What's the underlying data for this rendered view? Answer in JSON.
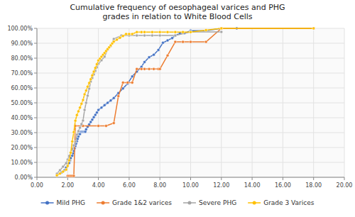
{
  "chart_data": {
    "type": "line",
    "title": "Cumulative frequency of oesophageal varices and PHG\ngrades in relation to White Blood Cells",
    "xlim": [
      0,
      20
    ],
    "ylim": [
      0,
      1.0
    ],
    "xticks": [
      {
        "value": 0,
        "label": "0.00"
      },
      {
        "value": 2,
        "label": "2.00"
      },
      {
        "value": 4,
        "label": "4.00"
      },
      {
        "value": 6,
        "label": "6.00"
      },
      {
        "value": 8,
        "label": "8.00"
      },
      {
        "value": 10,
        "label": "10.00"
      },
      {
        "value": 12,
        "label": "12.00"
      },
      {
        "value": 14,
        "label": "14.00"
      },
      {
        "value": 16,
        "label": "16.00"
      },
      {
        "value": 18,
        "label": "18.00"
      },
      {
        "value": 20,
        "label": "20.00"
      }
    ],
    "yticks": [
      {
        "value": 0,
        "label": "0.00%"
      },
      {
        "value": 0.1,
        "label": "10.00%"
      },
      {
        "value": 0.2,
        "label": "20.00%"
      },
      {
        "value": 0.3,
        "label": "30.00%"
      },
      {
        "value": 0.4,
        "label": "40.00%"
      },
      {
        "value": 0.5,
        "label": "50.00%"
      },
      {
        "value": 0.6,
        "label": "60.00%"
      },
      {
        "value": 0.7,
        "label": "70.00%"
      },
      {
        "value": 0.8,
        "label": "80.00%"
      },
      {
        "value": 0.9,
        "label": "90.00%"
      },
      {
        "value": 1.0,
        "label": "100.00%"
      }
    ],
    "grid": true,
    "legend": "bottom",
    "series": [
      {
        "name": "Mild PHG",
        "color": "#4472c4",
        "marker": "circle",
        "x": [
          1.3,
          1.6,
          1.8,
          1.9,
          2.0,
          2.1,
          2.15,
          2.2,
          2.3,
          2.35,
          2.4,
          2.45,
          2.5,
          2.55,
          2.6,
          2.65,
          2.7,
          2.75,
          2.8,
          2.85,
          2.9,
          2.95,
          3.0,
          3.05,
          3.1,
          3.15,
          3.2,
          3.3,
          3.4,
          3.5,
          3.6,
          3.7,
          3.8,
          3.9,
          4.0,
          4.2,
          4.4,
          4.6,
          4.8,
          5.0,
          5.3,
          5.6,
          5.9,
          6.2,
          6.5,
          6.8,
          7.0,
          7.3,
          7.6,
          7.9,
          8.2,
          8.5,
          8.8,
          9.0,
          9.3,
          9.6,
          10.0,
          11.0,
          12.0,
          13.0,
          18.0
        ],
        "values": [
          0.016,
          0.032,
          0.048,
          0.065,
          0.081,
          0.097,
          0.113,
          0.129,
          0.145,
          0.161,
          0.177,
          0.194,
          0.21,
          0.226,
          0.242,
          0.258,
          0.274,
          0.29,
          0.29,
          0.306,
          0.306,
          0.306,
          0.306,
          0.306,
          0.306,
          0.306,
          0.322,
          0.339,
          0.355,
          0.371,
          0.387,
          0.403,
          0.419,
          0.435,
          0.452,
          0.468,
          0.484,
          0.5,
          0.516,
          0.532,
          0.565,
          0.597,
          0.629,
          0.677,
          0.71,
          0.742,
          0.774,
          0.806,
          0.823,
          0.855,
          0.903,
          0.919,
          0.935,
          0.951,
          0.967,
          0.968,
          0.984,
          0.984,
          1.0,
          1.0,
          1.0
        ]
      },
      {
        "name": "Grade 1&2 varices",
        "color": "#ed7d31",
        "marker": "circle",
        "x": [
          2.0,
          2.1,
          2.2,
          2.3,
          2.4,
          2.5,
          3.0,
          4.0,
          4.5,
          5.0,
          5.3,
          5.6,
          5.9,
          6.2,
          6.5,
          6.8,
          7.0,
          7.3,
          7.6,
          7.9,
          8.0,
          8.5,
          9.0,
          9.5,
          10.0,
          11.0,
          12.0,
          18.0
        ],
        "values": [
          0.009,
          0.009,
          0.009,
          0.009,
          0.009,
          0.345,
          0.345,
          0.345,
          0.345,
          0.364,
          0.545,
          0.636,
          0.636,
          0.636,
          0.727,
          0.727,
          0.727,
          0.727,
          0.727,
          0.727,
          0.727,
          0.818,
          0.909,
          0.909,
          0.909,
          0.909,
          1.0,
          1.0
        ]
      },
      {
        "name": "Severe PHG",
        "color": "#a5a5a5",
        "marker": "circle",
        "x": [
          1.3,
          1.5,
          1.7,
          1.9,
          2.0,
          2.1,
          2.2,
          2.3,
          2.4,
          2.5,
          2.6,
          2.7,
          2.8,
          2.9,
          3.0,
          3.1,
          3.2,
          3.3,
          3.4,
          3.5,
          3.6,
          3.7,
          3.8,
          3.9,
          4.0,
          4.2,
          4.4,
          4.6,
          4.8,
          5.0,
          5.5,
          6.0,
          6.5,
          7.0,
          7.5,
          8.0,
          9.0,
          10.0,
          12.0
        ],
        "values": [
          0.024,
          0.048,
          0.071,
          0.095,
          0.119,
          0.143,
          0.167,
          0.19,
          0.214,
          0.238,
          0.286,
          0.31,
          0.333,
          0.357,
          0.381,
          0.452,
          0.5,
          0.548,
          0.595,
          0.643,
          0.667,
          0.69,
          0.714,
          0.738,
          0.762,
          0.786,
          0.81,
          0.857,
          0.881,
          0.929,
          0.952,
          0.952,
          0.952,
          0.952,
          0.952,
          0.952,
          0.952,
          0.976,
          0.976
        ]
      },
      {
        "name": "Grade 3 Varices",
        "color": "#ffc000",
        "marker": "circle",
        "x": [
          1.3,
          1.5,
          1.7,
          1.9,
          2.0,
          2.1,
          2.2,
          2.3,
          2.4,
          2.5,
          2.6,
          2.7,
          2.8,
          2.9,
          3.0,
          3.1,
          3.2,
          3.3,
          3.4,
          3.5,
          3.6,
          3.7,
          3.8,
          3.9,
          4.0,
          4.1,
          4.2,
          4.3,
          4.4,
          4.5,
          4.6,
          4.7,
          4.8,
          4.9,
          5.0,
          5.2,
          5.4,
          5.6,
          5.8,
          6.0,
          6.2,
          6.5,
          6.8,
          7.0,
          7.5,
          8.0,
          8.5,
          9.0,
          9.5,
          10.0,
          11.0,
          12.0,
          18.0
        ],
        "values": [
          0.013,
          0.025,
          0.038,
          0.051,
          0.076,
          0.114,
          0.165,
          0.241,
          0.304,
          0.38,
          0.418,
          0.443,
          0.468,
          0.494,
          0.519,
          0.557,
          0.582,
          0.608,
          0.633,
          0.658,
          0.684,
          0.709,
          0.734,
          0.759,
          0.785,
          0.797,
          0.81,
          0.823,
          0.835,
          0.848,
          0.861,
          0.873,
          0.886,
          0.899,
          0.911,
          0.924,
          0.937,
          0.949,
          0.962,
          0.962,
          0.962,
          0.975,
          0.975,
          0.975,
          0.975,
          0.975,
          0.975,
          0.975,
          0.975,
          0.975,
          0.988,
          1.0,
          1.0
        ]
      }
    ]
  }
}
